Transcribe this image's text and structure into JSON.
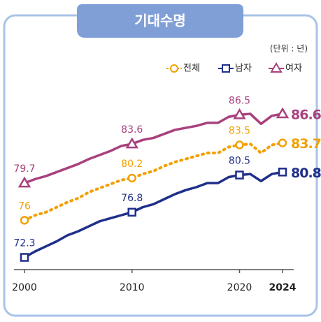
{
  "chart_data": {
    "type": "line",
    "title": "기대수명",
    "unit_label": "(단위 : 년)",
    "x": [
      2000,
      2001,
      2002,
      2003,
      2004,
      2005,
      2006,
      2007,
      2008,
      2009,
      2010,
      2011,
      2012,
      2013,
      2014,
      2015,
      2016,
      2017,
      2018,
      2019,
      2020,
      2021,
      2022,
      2023,
      2024
    ],
    "xlim": [
      2000,
      2024
    ],
    "xticks": [
      2000,
      2010,
      2020,
      2024
    ],
    "ylim": [
      71.5,
      87.5
    ],
    "series": [
      {
        "name": "전체",
        "color": "#f2a000",
        "marker": "circle",
        "dashed": true,
        "values": [
          76.0,
          76.5,
          76.8,
          77.3,
          77.8,
          78.2,
          78.8,
          79.2,
          79.6,
          80.0,
          80.2,
          80.6,
          80.9,
          81.4,
          81.8,
          82.1,
          82.4,
          82.7,
          82.7,
          83.3,
          83.5,
          83.6,
          82.7,
          83.5,
          83.7
        ]
      },
      {
        "name": "남자",
        "color": "#1f2f8a",
        "marker": "square",
        "dashed": false,
        "values": [
          72.3,
          72.9,
          73.4,
          73.9,
          74.5,
          74.9,
          75.4,
          75.9,
          76.2,
          76.5,
          76.8,
          77.3,
          77.6,
          78.1,
          78.6,
          79.0,
          79.3,
          79.7,
          79.7,
          80.3,
          80.5,
          80.6,
          79.9,
          80.6,
          80.8
        ]
      },
      {
        "name": "여자",
        "color": "#a8417e",
        "marker": "triangle",
        "dashed": false,
        "values": [
          79.7,
          80.1,
          80.4,
          80.8,
          81.2,
          81.6,
          82.1,
          82.5,
          82.9,
          83.4,
          83.6,
          84.0,
          84.2,
          84.6,
          85.0,
          85.2,
          85.4,
          85.7,
          85.7,
          86.3,
          86.5,
          86.6,
          85.6,
          86.4,
          86.6
        ]
      }
    ]
  }
}
